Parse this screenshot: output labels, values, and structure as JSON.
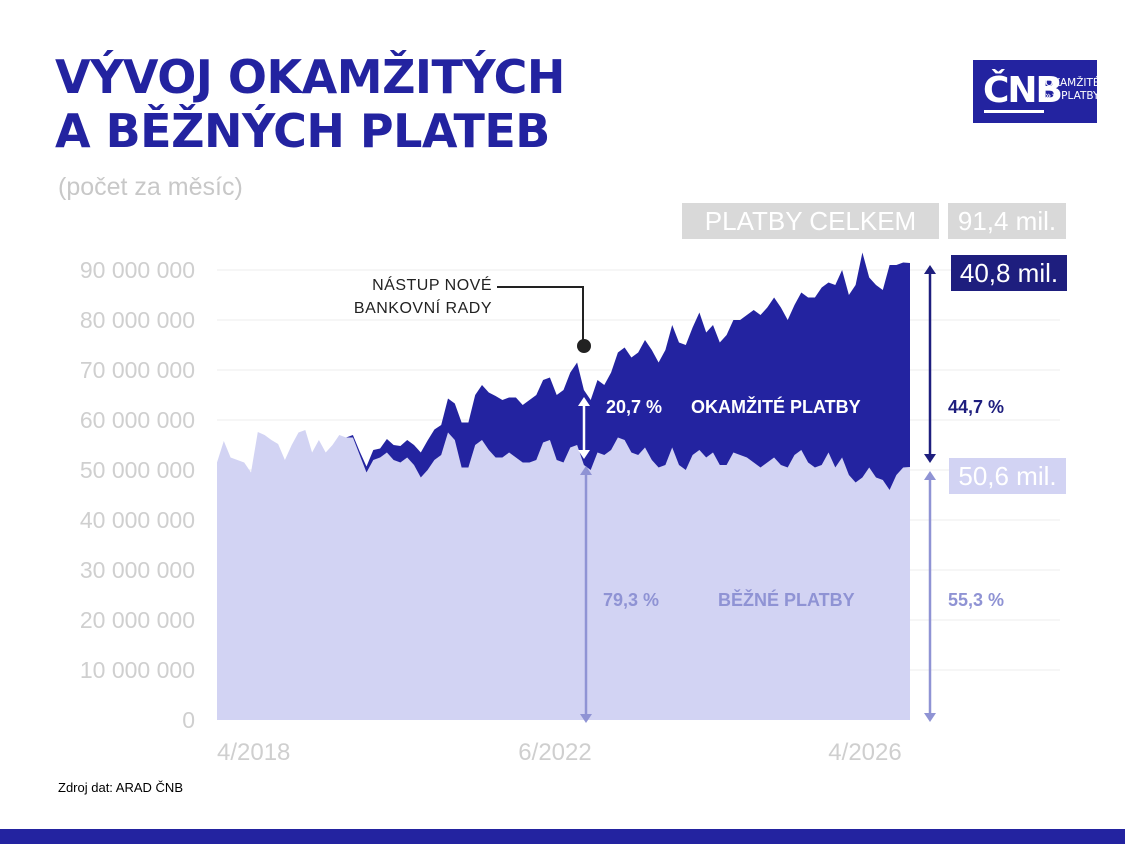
{
  "title": {
    "line1": "VÝVOJ OKAMŽITÝCH",
    "line2": "A BĚŽNÝCH PLATEB"
  },
  "subtitle": "(počet za měsíc)",
  "logo": {
    "mark": "ČNB",
    "line1": "OKAMŽITÉ",
    "line2": "»» PLATBY"
  },
  "badges": {
    "total_label": "PLATBY CELKEM",
    "total_value": "91,4 mil.",
    "instant_value": "40,8 mil.",
    "regular_value": "50,6 mil."
  },
  "annotation": {
    "line1": "NÁSTUP NOVÉ",
    "line2": "BANKOVNÍ RADY"
  },
  "shares": {
    "instant_2022": "20,7 %",
    "regular_2022": "79,3 %",
    "instant_latest": "44,7 %",
    "regular_latest": "55,3 %"
  },
  "series_labels": {
    "instant": "OKAMŽITÉ PLATBY",
    "regular": "BĚŽNÉ PLATBY"
  },
  "source": "Zdroj dat: ARAD ČNB",
  "colors": {
    "brand": "#2323a0",
    "instant": "#2323a0",
    "regular": "#d2d3f3",
    "grey": "#d9d9d9"
  },
  "chart_data": {
    "type": "area",
    "stacked": true,
    "y_ticks": [
      "0",
      "10 000 000",
      "20 000 000",
      "30 000 000",
      "40 000 000",
      "50 000 000",
      "60 000 000",
      "70 000 000",
      "80 000 000",
      "90 000 000"
    ],
    "ylim": [
      0,
      90000000
    ],
    "x_ticks": [
      "4/2018",
      "6/2022",
      "4/2026"
    ],
    "grid": true,
    "series": [
      {
        "name": "BĚŽNÉ PLATBY",
        "values": [
          51.5,
          55.8,
          52.5,
          52.0,
          51.5,
          49.5,
          57.6,
          57.0,
          56.0,
          55.2,
          52.0,
          55.0,
          57.5,
          58.0,
          53.5,
          56.0,
          53.5,
          55.0,
          57.0,
          56.5,
          56.5,
          53.0,
          49.5,
          52.0,
          52.5,
          53.5,
          52.0,
          51.5,
          52.5,
          51.0,
          48.5,
          50.0,
          52.0,
          53.0,
          57.5,
          56.0,
          50.5,
          50.5,
          55.0,
          56.0,
          54.0,
          52.5,
          52.5,
          53.5,
          52.5,
          51.5,
          51.5,
          52.0,
          55.5,
          56.0,
          52.0,
          51.5,
          54.5,
          55.0,
          51.0,
          50.0,
          53.5,
          53.0,
          54.0,
          56.5,
          56.0,
          53.5,
          53.0,
          54.5,
          52.0,
          50.5,
          51.0,
          54.5,
          51.0,
          50.0,
          53.0,
          54.0,
          52.5,
          53.5,
          51.0,
          51.0,
          53.5,
          53.0,
          52.5,
          51.5,
          50.5,
          51.5,
          52.5,
          51.0,
          50.5,
          53.0,
          54.0,
          51.5,
          50.5,
          51.0,
          53.5,
          50.5,
          52.5,
          49.0,
          47.5,
          48.5,
          50.5,
          48.5,
          48.0,
          46.0,
          49.0,
          50.5,
          50.6
        ]
      },
      {
        "name": "OKAMŽITÉ PLATBY",
        "values": [
          0,
          0,
          0,
          0,
          0,
          0,
          0,
          0,
          0,
          0,
          0,
          0,
          0,
          0,
          0,
          0,
          0,
          0,
          0,
          0,
          0.5,
          0.7,
          1.2,
          2.0,
          1.8,
          2.7,
          3.0,
          3.3,
          3.5,
          4.0,
          5.0,
          5.9,
          6.1,
          6.0,
          6.8,
          7.3,
          9.0,
          9.0,
          10.0,
          11.0,
          11.5,
          12.3,
          11.5,
          11.0,
          12.0,
          11.5,
          12.5,
          13.0,
          12.5,
          12.5,
          13.0,
          14.5,
          15.0,
          16.5,
          15.0,
          14.0,
          14.5,
          14.0,
          15.5,
          17.0,
          18.5,
          19.0,
          20.5,
          21.5,
          22.0,
          21.0,
          23.0,
          24.5,
          24.5,
          25.0,
          25.5,
          27.5,
          25.0,
          25.5,
          24.5,
          26.0,
          26.5,
          27.0,
          28.5,
          30.5,
          30.5,
          31.0,
          32.0,
          31.5,
          29.5,
          30.0,
          31.5,
          33.0,
          34.0,
          35.5,
          34.0,
          36.5,
          37.5,
          36.0,
          39.5,
          45.0,
          38.0,
          38.5,
          38.0,
          45.0,
          42.0,
          41.0,
          40.8
        ]
      }
    ]
  }
}
